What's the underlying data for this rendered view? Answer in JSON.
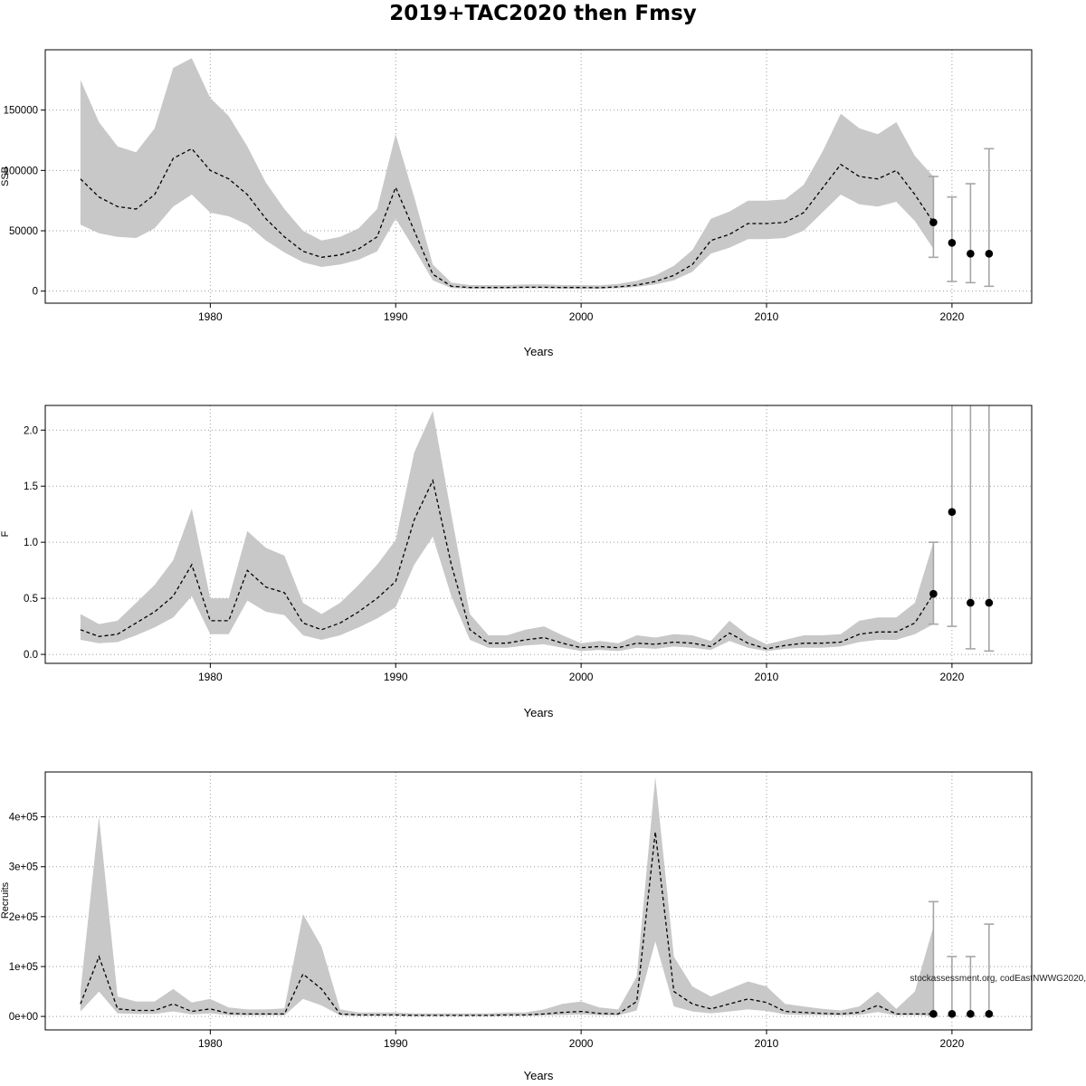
{
  "title": "2019+TAC2020 then Fmsy",
  "annotation": "stockassessment.org, codEastNWWG2020,",
  "chart_data": [
    {
      "type": "area",
      "name": "ssb",
      "title": "",
      "xlabel": "Years",
      "ylabel": "SSB",
      "grid": true,
      "x_start": 1973,
      "xlim": [
        1971.1,
        2024.3
      ],
      "ylim": [
        -10000,
        200000
      ],
      "xticks": [
        1980,
        1990,
        2000,
        2010,
        2020
      ],
      "yticks": [
        0,
        50000,
        100000,
        150000
      ],
      "ytick_labels": [
        "0",
        "50000",
        "100000",
        "150000"
      ],
      "values": [
        93000,
        78000,
        70000,
        68000,
        80000,
        110000,
        118000,
        100000,
        93000,
        80000,
        60000,
        45000,
        33000,
        28000,
        30000,
        35000,
        45000,
        86000,
        50000,
        14000,
        4000,
        3000,
        3000,
        3000,
        3200,
        3200,
        3000,
        3000,
        2800,
        3500,
        5000,
        8000,
        13000,
        22000,
        42000,
        47000,
        56000,
        56000,
        57000,
        65000,
        85000,
        105000,
        95000,
        93000,
        100000,
        80000,
        57000
      ],
      "lo": [
        55000,
        48000,
        45000,
        44000,
        52000,
        70000,
        80000,
        65000,
        62000,
        55000,
        42000,
        32000,
        24000,
        20000,
        22000,
        26000,
        33000,
        60000,
        35000,
        9000,
        2500,
        2000,
        2000,
        2000,
        2200,
        2200,
        2000,
        2000,
        1900,
        2400,
        3500,
        5500,
        9000,
        16000,
        31000,
        36000,
        43000,
        43000,
        44000,
        50000,
        65000,
        80000,
        72000,
        70000,
        74000,
        58000,
        35000
      ],
      "hi": [
        175000,
        140000,
        120000,
        115000,
        135000,
        185000,
        193000,
        160000,
        145000,
        120000,
        90000,
        68000,
        50000,
        42000,
        45000,
        52000,
        68000,
        130000,
        78000,
        22000,
        7000,
        5000,
        5000,
        5000,
        5500,
        5500,
        5000,
        5000,
        4800,
        6000,
        8500,
        13000,
        21000,
        34000,
        60000,
        66000,
        75000,
        75000,
        76000,
        88000,
        115000,
        147000,
        135000,
        130000,
        140000,
        112000,
        95000
      ],
      "forecast": {
        "x": [
          2019,
          2020,
          2021,
          2022
        ],
        "values": [
          57000,
          40000,
          31000,
          31000
        ],
        "lo": [
          28000,
          8000,
          7000,
          4000
        ],
        "hi": [
          95000,
          78000,
          89000,
          118000
        ]
      }
    },
    {
      "type": "area",
      "name": "f",
      "title": "",
      "xlabel": "Years",
      "ylabel": "F",
      "grid": true,
      "x_start": 1973,
      "xlim": [
        1971.1,
        2024.3
      ],
      "ylim": [
        -0.08,
        2.22
      ],
      "xticks": [
        1980,
        1990,
        2000,
        2010,
        2020
      ],
      "yticks": [
        0.0,
        0.5,
        1.0,
        1.5,
        2.0
      ],
      "ytick_labels": [
        "0.0",
        "0.5",
        "1.0",
        "1.5",
        "2.0"
      ],
      "values": [
        0.22,
        0.16,
        0.18,
        0.28,
        0.38,
        0.52,
        0.8,
        0.3,
        0.3,
        0.75,
        0.6,
        0.55,
        0.28,
        0.22,
        0.28,
        0.38,
        0.5,
        0.65,
        1.2,
        1.55,
        0.8,
        0.22,
        0.1,
        0.1,
        0.13,
        0.15,
        0.1,
        0.06,
        0.07,
        0.06,
        0.1,
        0.09,
        0.11,
        0.1,
        0.07,
        0.19,
        0.1,
        0.05,
        0.08,
        0.1,
        0.1,
        0.11,
        0.18,
        0.2,
        0.2,
        0.28,
        0.54
      ],
      "lo": [
        0.13,
        0.1,
        0.11,
        0.17,
        0.24,
        0.33,
        0.52,
        0.18,
        0.18,
        0.48,
        0.38,
        0.35,
        0.17,
        0.13,
        0.17,
        0.24,
        0.32,
        0.42,
        0.8,
        1.05,
        0.52,
        0.13,
        0.06,
        0.06,
        0.08,
        0.09,
        0.06,
        0.03,
        0.04,
        0.03,
        0.06,
        0.05,
        0.07,
        0.06,
        0.04,
        0.12,
        0.06,
        0.03,
        0.05,
        0.06,
        0.06,
        0.07,
        0.11,
        0.13,
        0.13,
        0.18,
        0.27
      ],
      "hi": [
        0.36,
        0.27,
        0.3,
        0.46,
        0.62,
        0.84,
        1.3,
        0.5,
        0.5,
        1.1,
        0.95,
        0.88,
        0.46,
        0.36,
        0.46,
        0.62,
        0.8,
        1.02,
        1.8,
        2.17,
        1.25,
        0.36,
        0.17,
        0.17,
        0.22,
        0.25,
        0.17,
        0.1,
        0.12,
        0.1,
        0.17,
        0.15,
        0.18,
        0.17,
        0.12,
        0.3,
        0.17,
        0.09,
        0.13,
        0.17,
        0.17,
        0.18,
        0.3,
        0.33,
        0.33,
        0.46,
        1.0
      ],
      "forecast": {
        "x": [
          2019,
          2020,
          2021,
          2022
        ],
        "values": [
          0.54,
          1.27,
          0.46,
          0.46
        ],
        "lo": [
          0.27,
          0.25,
          0.05,
          0.03
        ],
        "hi": [
          1.0,
          2.5,
          2.5,
          2.5
        ]
      }
    },
    {
      "type": "area",
      "name": "recruitment",
      "title": "",
      "xlabel": "Years",
      "ylabel": "Recruits",
      "grid": true,
      "x_start": 1973,
      "xlim": [
        1971.1,
        2024.3
      ],
      "ylim": [
        -27000,
        490000
      ],
      "xticks": [
        1980,
        1990,
        2000,
        2010,
        2020
      ],
      "yticks": [
        0,
        100000,
        200000,
        300000,
        400000
      ],
      "ytick_labels": [
        "0e+00",
        "1e+05",
        "2e+05",
        "3e+05",
        "4e+05"
      ],
      "values": [
        25000,
        120000,
        15000,
        12000,
        12000,
        25000,
        10000,
        15000,
        6000,
        5000,
        5000,
        5000,
        85000,
        55000,
        5000,
        3000,
        3000,
        3000,
        2000,
        2000,
        2000,
        2000,
        2000,
        3000,
        3000,
        5000,
        8000,
        10000,
        6000,
        5000,
        30000,
        370000,
        50000,
        25000,
        15000,
        25000,
        35000,
        28000,
        10000,
        8000,
        6000,
        5000,
        8000,
        22000,
        5000,
        5000,
        5000
      ],
      "lo": [
        10000,
        50000,
        6000,
        5000,
        5000,
        10000,
        4000,
        6000,
        2500,
        2000,
        2000,
        2000,
        35000,
        22000,
        2000,
        1200,
        1200,
        1200,
        800,
        800,
        800,
        800,
        800,
        1200,
        1200,
        2000,
        3000,
        4000,
        2500,
        2000,
        12000,
        150000,
        20000,
        10000,
        6000,
        10000,
        14000,
        11000,
        4000,
        3000,
        2500,
        2000,
        3000,
        9000,
        2000,
        2000,
        1000
      ],
      "hi": [
        50000,
        400000,
        40000,
        30000,
        30000,
        55000,
        28000,
        35000,
        18000,
        14000,
        14000,
        16000,
        205000,
        140000,
        14000,
        8000,
        8000,
        8000,
        6000,
        6000,
        6000,
        6000,
        6000,
        8000,
        8000,
        14000,
        25000,
        30000,
        18000,
        14000,
        80000,
        480000,
        120000,
        60000,
        40000,
        55000,
        70000,
        60000,
        25000,
        20000,
        15000,
        12000,
        20000,
        50000,
        15000,
        50000,
        180000
      ],
      "forecast": {
        "x": [
          2019,
          2020,
          2021,
          2022
        ],
        "values": [
          5000,
          5000,
          5000,
          5000
        ],
        "lo": [
          1000,
          1000,
          1000,
          1000
        ],
        "hi": [
          230000,
          120000,
          120000,
          185000
        ]
      }
    }
  ],
  "style": {
    "band_color": "#c8c8c8",
    "line_color": "#000000",
    "point_color": "#000000",
    "errorbar_color": "#a6a6a6",
    "grid_color": "#9a9a9a"
  }
}
